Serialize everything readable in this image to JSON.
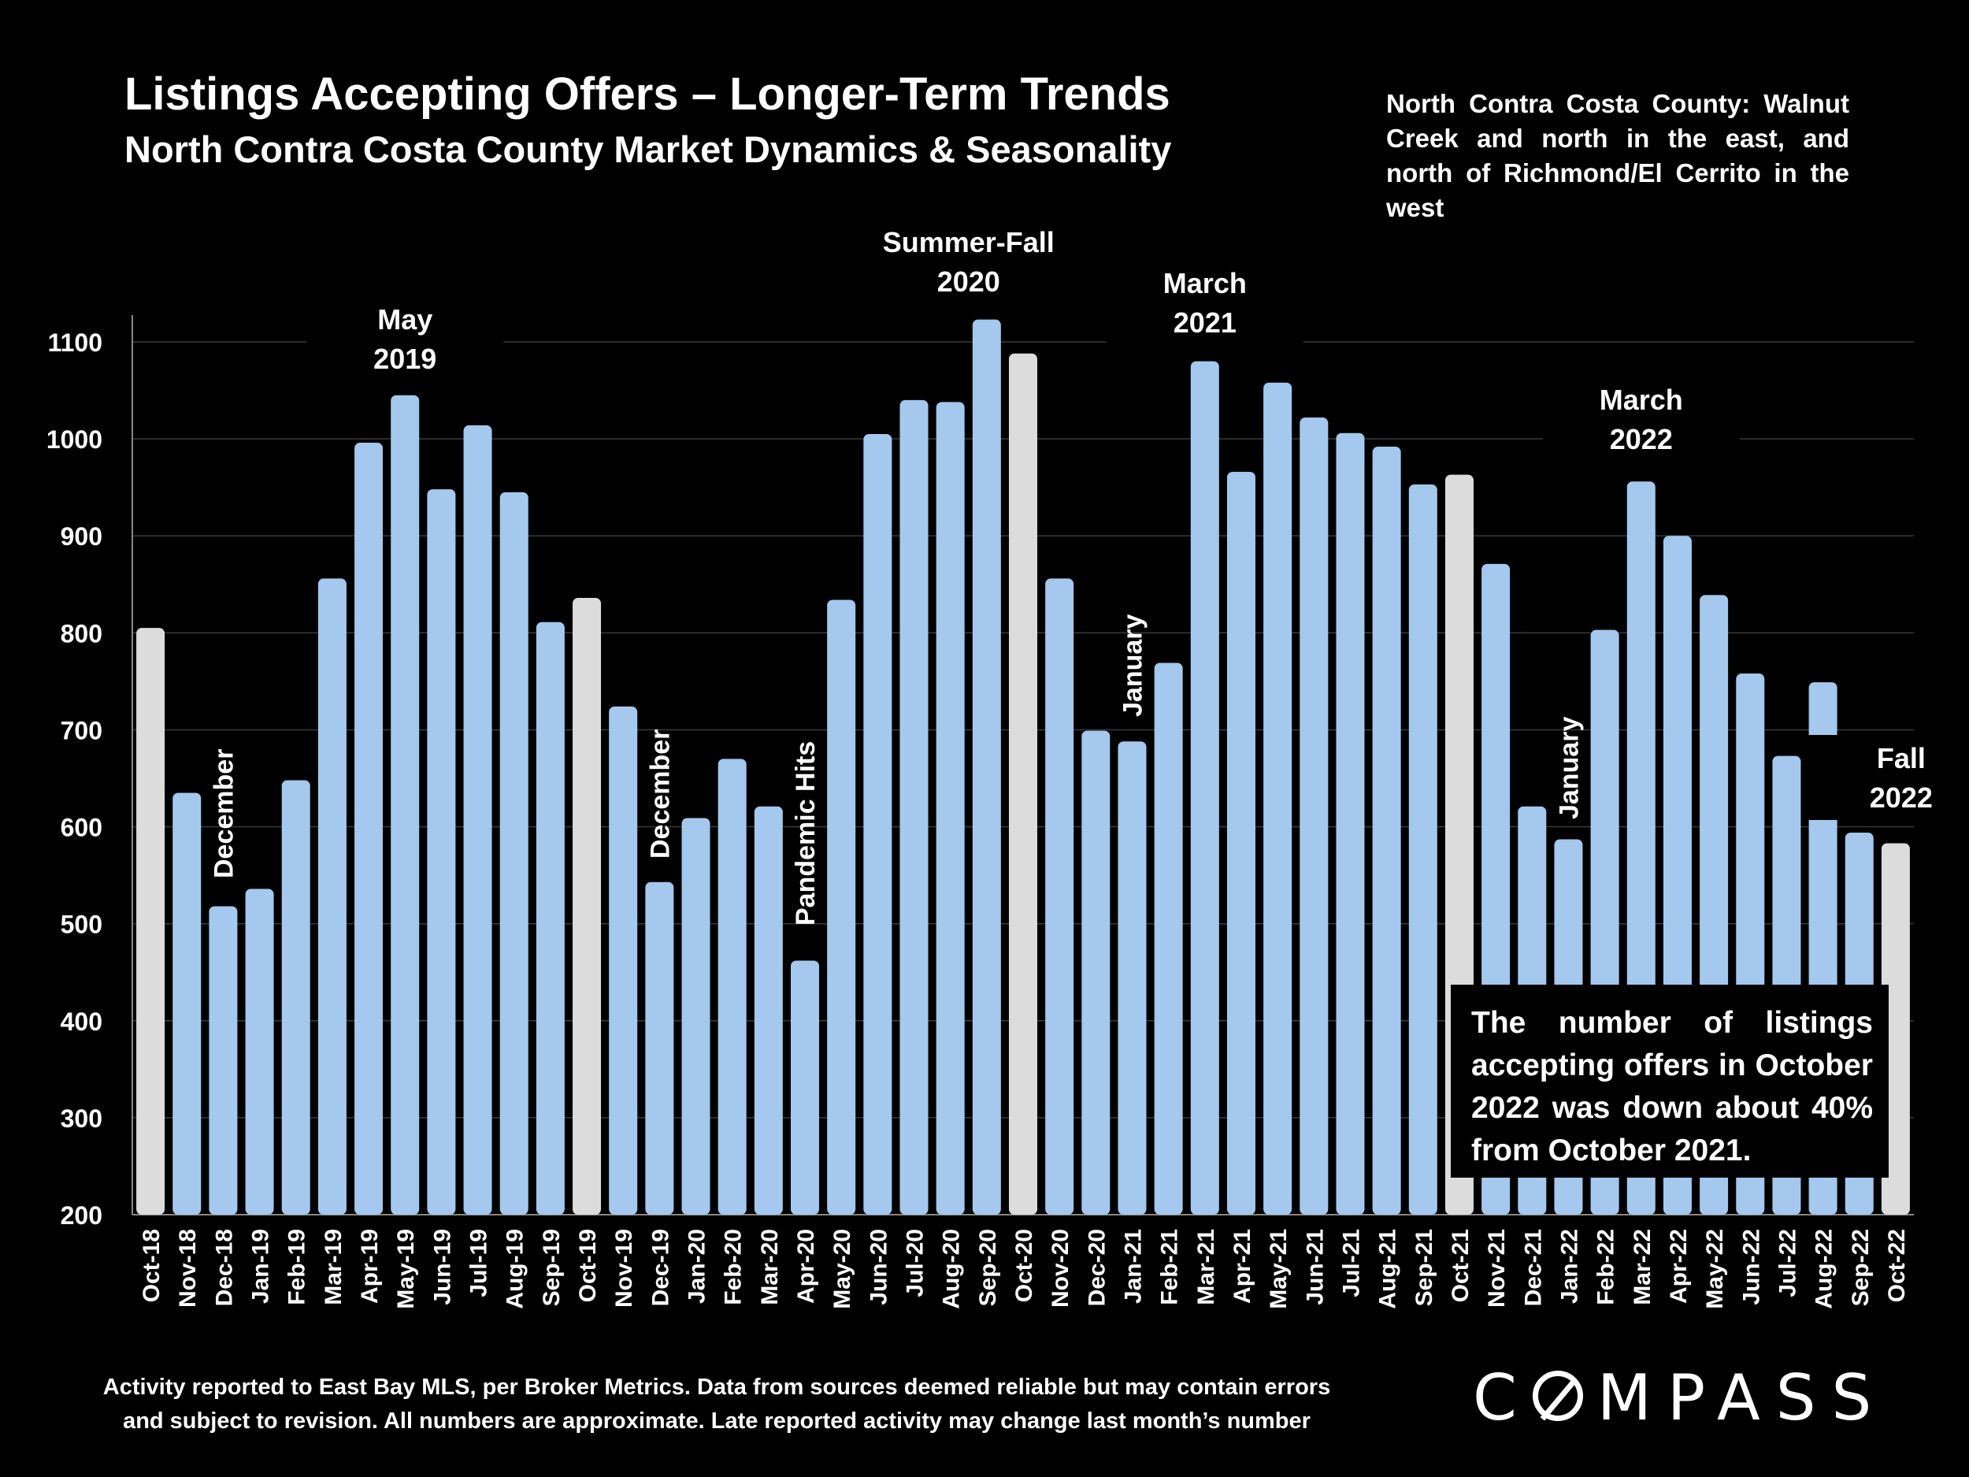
{
  "header": {
    "title": "Listings Accepting Offers – Longer-Term Trends",
    "subtitle": "North Contra Costa County Market Dynamics & Seasonality",
    "region_note": "North Contra Costa County: Walnut Creek and north in the east, and north of Richmond/El Cerrito in the west"
  },
  "callout": {
    "text": "The number of listings accepting offers in October 2022 was down about 40% from October 2021."
  },
  "footer": {
    "note_line1": "Activity reported to East Bay MLS, per Broker Metrics. Data from sources deemed reliable but may contain errors",
    "note_line2": "and subject to revision. All numbers are approximate. Late reported activity may change last month’s number",
    "logo": "COMPASS"
  },
  "chart_data": {
    "type": "bar",
    "title": "Listings Accepting Offers – Longer-Term Trends",
    "subtitle": "North Contra Costa County Market Dynamics & Seasonality",
    "xlabel": "",
    "ylabel": "",
    "ylim": [
      200,
      1100
    ],
    "yticks": [
      200,
      300,
      400,
      500,
      600,
      700,
      800,
      900,
      1000,
      1100
    ],
    "grid": true,
    "colors": {
      "bar": "#a4c8ee",
      "highlight": "#dcdcdc",
      "background": "#000000",
      "text": "#ffffff"
    },
    "categories": [
      "Oct-18",
      "Nov-18",
      "Dec-18",
      "Jan-19",
      "Feb-19",
      "Mar-19",
      "Apr-19",
      "May-19",
      "Jun-19",
      "Jul-19",
      "Aug-19",
      "Sep-19",
      "Oct-19",
      "Nov-19",
      "Dec-19",
      "Jan-20",
      "Feb-20",
      "Mar-20",
      "Apr-20",
      "May-20",
      "Jun-20",
      "Jul-20",
      "Aug-20",
      "Sep-20",
      "Oct-20",
      "Nov-20",
      "Dec-20",
      "Jan-21",
      "Feb-21",
      "Mar-21",
      "Apr-21",
      "May-21",
      "Jun-21",
      "Jul-21",
      "Aug-21",
      "Sep-21",
      "Oct-21",
      "Nov-21",
      "Dec-21",
      "Jan-22",
      "Feb-22",
      "Mar-22",
      "Apr-22",
      "May-22",
      "Jun-22",
      "Jul-22",
      "Aug-22",
      "Sep-22",
      "Oct-22"
    ],
    "values": [
      805,
      635,
      518,
      536,
      648,
      856,
      996,
      1045,
      948,
      1014,
      945,
      811,
      836,
      724,
      543,
      609,
      670,
      621,
      462,
      834,
      1005,
      1040,
      1038,
      1123,
      1088,
      856,
      699,
      688,
      769,
      1080,
      966,
      1058,
      1022,
      1006,
      992,
      953,
      963,
      871,
      621,
      587,
      803,
      956,
      900,
      839,
      758,
      673,
      749,
      594,
      583
    ],
    "highlighted": [
      "Oct-18",
      "Oct-19",
      "Oct-20",
      "Oct-21",
      "Oct-22"
    ],
    "annotations": [
      {
        "text": "December",
        "category": "Dec-18",
        "rotated": true
      },
      {
        "text": "December",
        "category": "Dec-19",
        "rotated": true
      },
      {
        "text": "Pandemic Hits",
        "category": "Apr-20",
        "rotated": true
      },
      {
        "text": "January",
        "category": "Jan-21",
        "rotated": true
      },
      {
        "text": "January",
        "category": "Jan-22",
        "rotated": true
      },
      {
        "text": "May 2019",
        "lines": [
          "May",
          "2019"
        ],
        "category": "May-19",
        "rotated": false
      },
      {
        "text": "Summer-Fall 2020",
        "lines": [
          "Summer-Fall",
          "2020"
        ],
        "category": "Aug-20",
        "rotated": false
      },
      {
        "text": "March 2021",
        "lines": [
          "March",
          "2021"
        ],
        "category": "Mar-21",
        "rotated": false
      },
      {
        "text": "March 2022",
        "lines": [
          "March",
          "2022"
        ],
        "category": "Mar-22",
        "rotated": false
      },
      {
        "text": "Fall 2022",
        "lines": [
          "Fall",
          "2022"
        ],
        "category": "Oct-22",
        "rotated": false
      }
    ]
  }
}
